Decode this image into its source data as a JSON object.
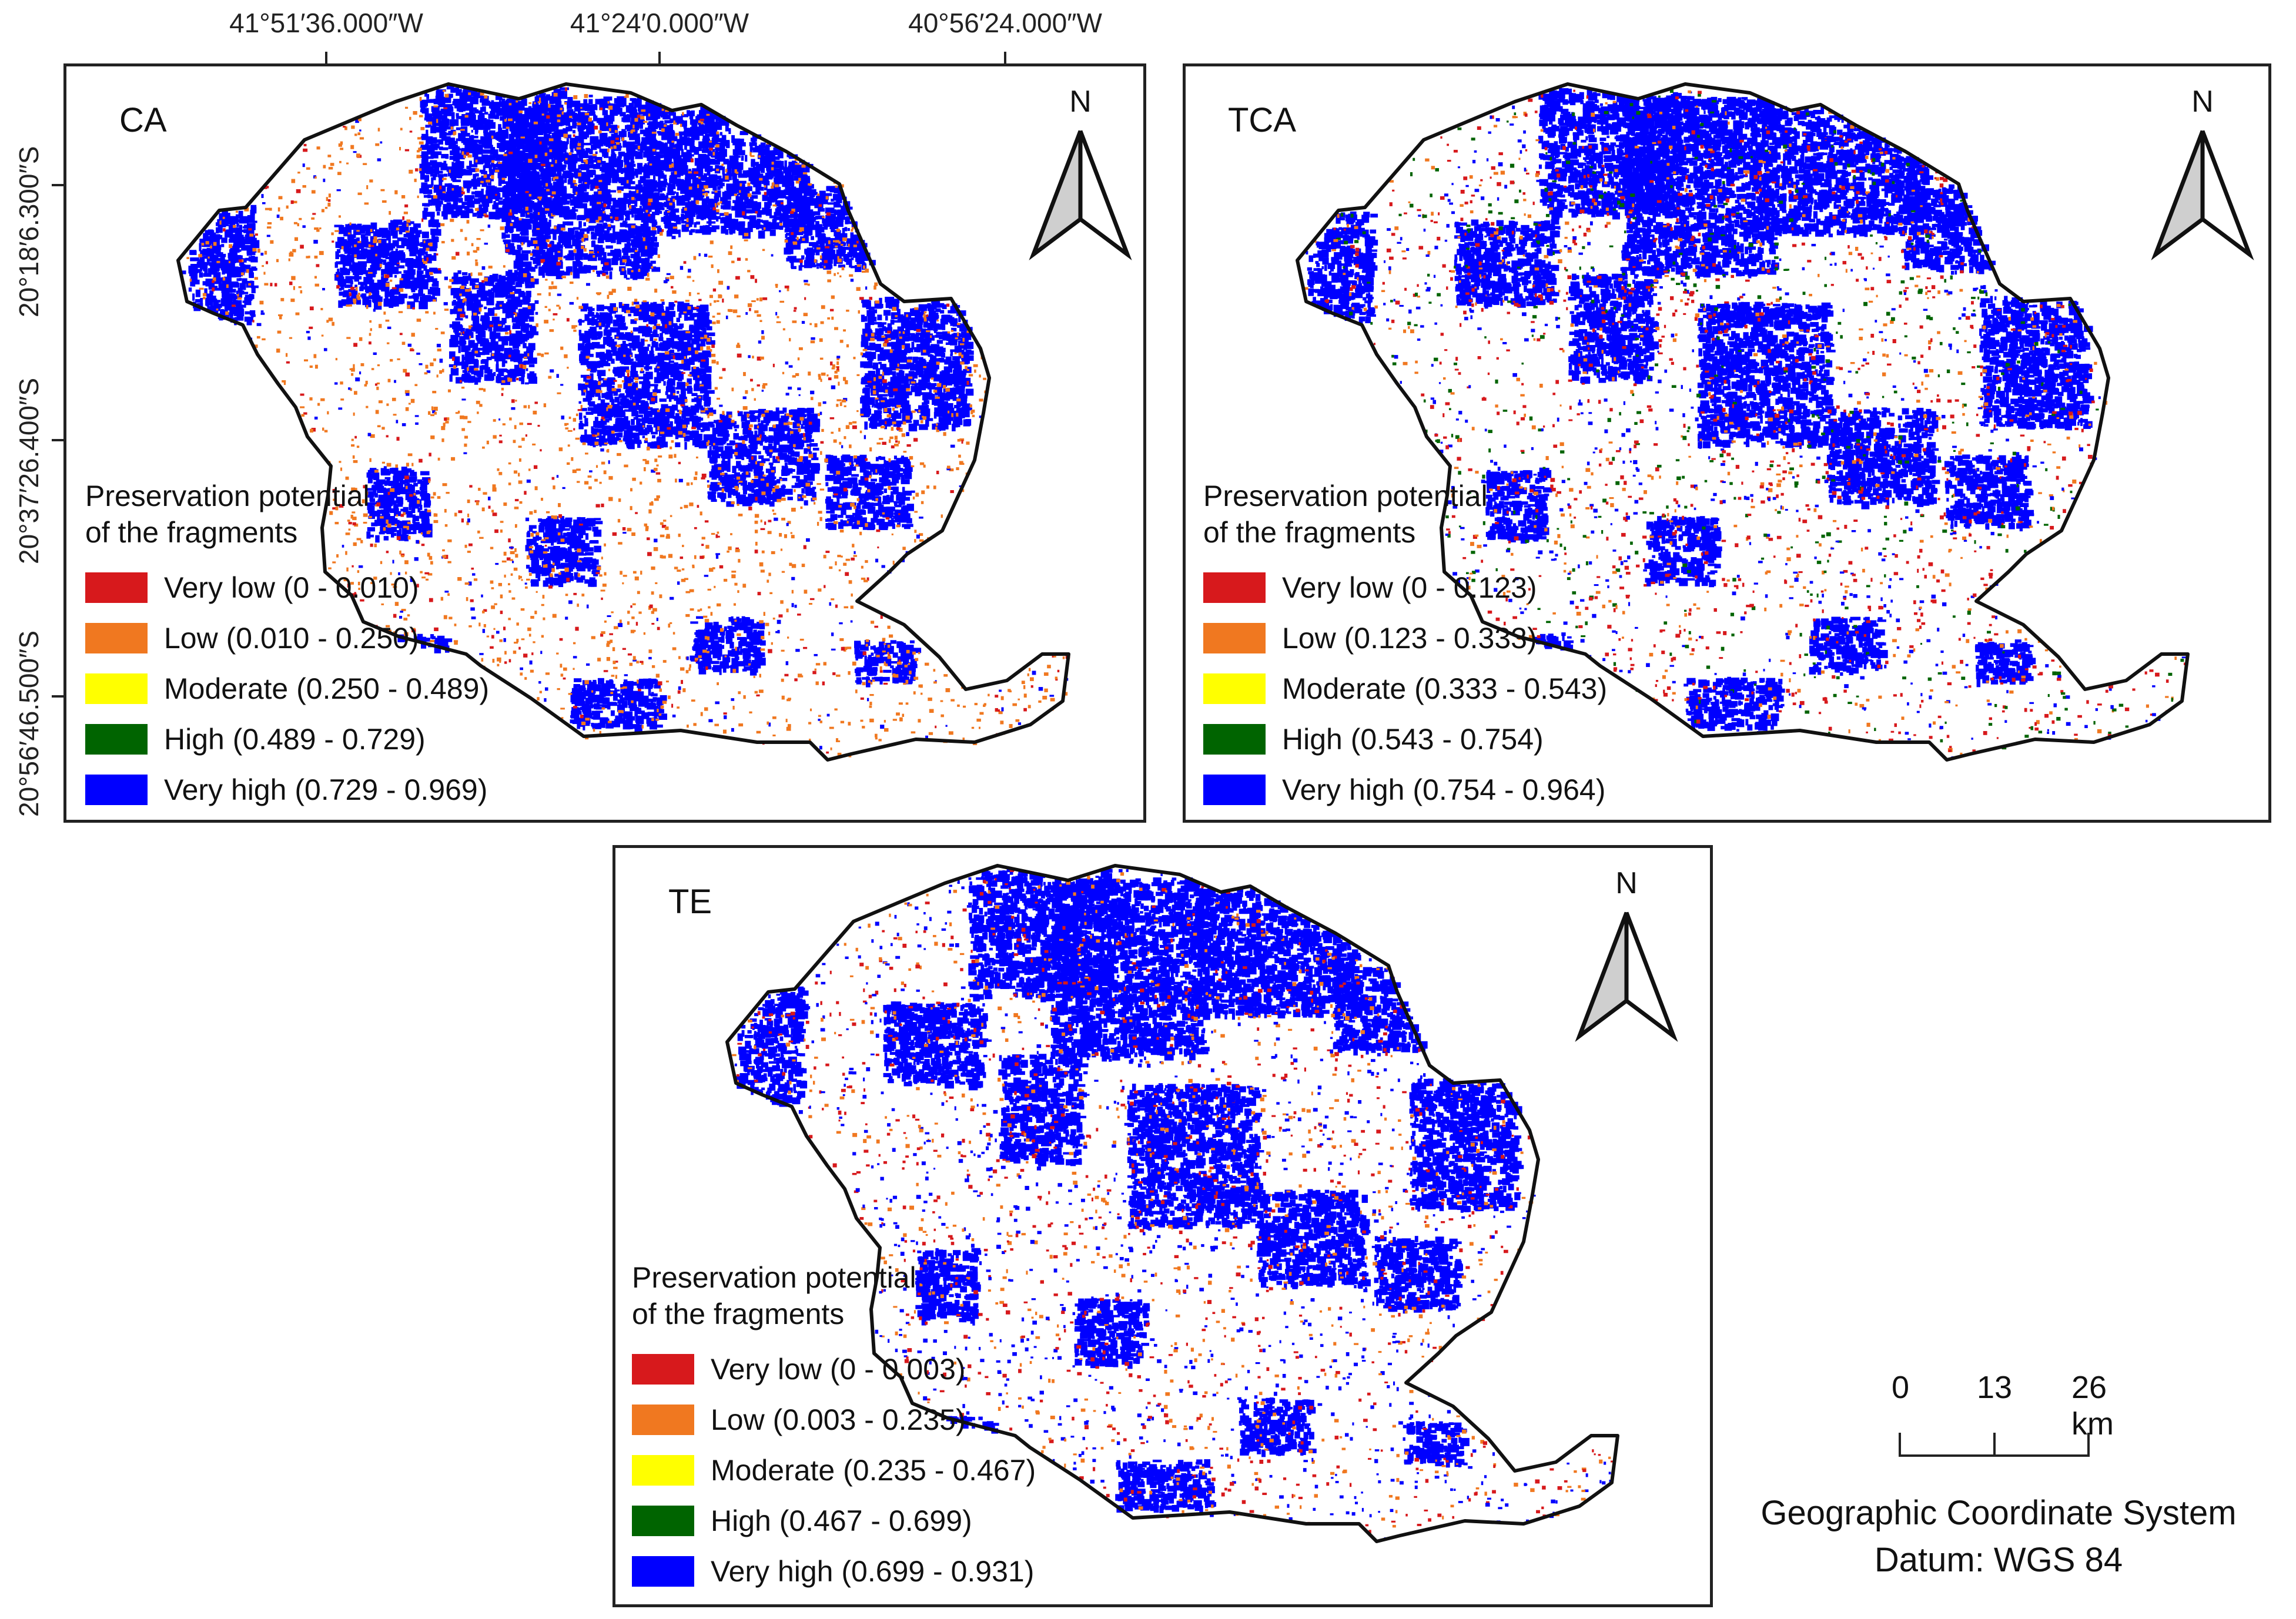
{
  "top_coordinates": [
    "41°51′36.000″W",
    "41°24′0.000″W",
    "40°56′24.000″W"
  ],
  "left_coordinates": [
    "20°18′6.300″S",
    "20°37′26.400″S",
    "20°56′46.500″S"
  ],
  "panels": [
    {
      "label": "CA",
      "legend_title_line1": "Preservation potential",
      "legend_title_line2": "of the fragments",
      "classes": [
        {
          "label": "Very low (0 - 0.010)",
          "color": "#d7191c"
        },
        {
          "label": "Low (0.010 - 0.250)",
          "color": "#f07820"
        },
        {
          "label": "Moderate (0.250 - 0.489)",
          "color": "#ffff00"
        },
        {
          "label": "High (0.489 - 0.729)",
          "color": "#006400"
        },
        {
          "label": "Very high (0.729 - 0.969)",
          "color": "#0000ff"
        }
      ]
    },
    {
      "label": "TCA",
      "legend_title_line1": "Preservation potential",
      "legend_title_line2": "of the fragments",
      "classes": [
        {
          "label": "Very low (0 - 0.123)",
          "color": "#d7191c"
        },
        {
          "label": "Low (0.123 - 0.333)",
          "color": "#f07820"
        },
        {
          "label": "Moderate (0.333 - 0.543)",
          "color": "#ffff00"
        },
        {
          "label": "High (0.543 - 0.754)",
          "color": "#006400"
        },
        {
          "label": "Very high (0.754 - 0.964)",
          "color": "#0000ff"
        }
      ]
    },
    {
      "label": "TE",
      "legend_title_line1": "Preservation potential",
      "legend_title_line2": "of the fragments",
      "classes": [
        {
          "label": "Very low (0 - 0.003)",
          "color": "#d7191c"
        },
        {
          "label": "Low (0.003 - 0.235)",
          "color": "#f07820"
        },
        {
          "label": "Moderate (0.235 - 0.467)",
          "color": "#ffff00"
        },
        {
          "label": "High (0.467 - 0.699)",
          "color": "#006400"
        },
        {
          "label": "Very high (0.699 - 0.931)",
          "color": "#0000ff"
        }
      ]
    }
  ],
  "north_letter": "N",
  "scale": {
    "labels": [
      "0",
      "13",
      "26 km"
    ]
  },
  "credits": {
    "line1": "Geographic Coordinate System",
    "line2": "Datum: WGS 84"
  }
}
